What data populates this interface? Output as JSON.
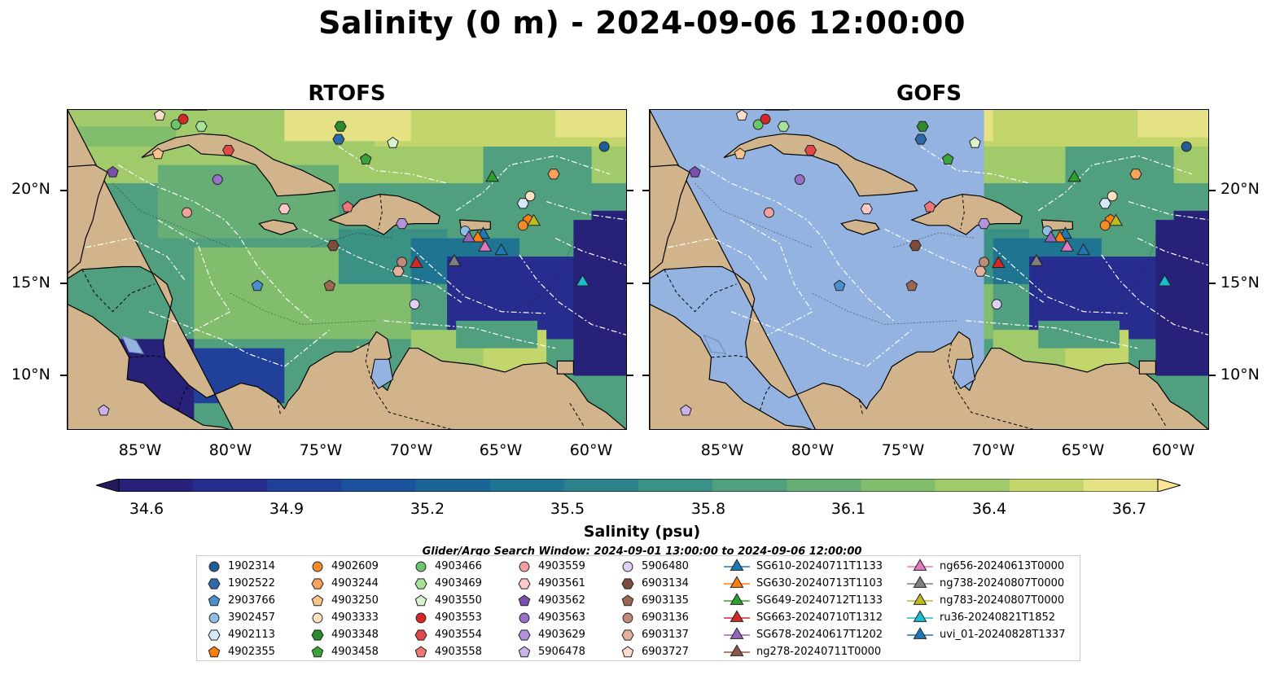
{
  "title": "Salinity (0 m) - 2024-09-06 12:00:00",
  "panels": [
    {
      "title": "RTOFS"
    },
    {
      "title": "GOFS"
    }
  ],
  "lat_labels": [
    "20°N",
    "15°N",
    "10°N"
  ],
  "lon_labels": [
    "85°W",
    "80°W",
    "75°W",
    "70°W",
    "65°W",
    "60°W"
  ],
  "map_extent": {
    "lon": [
      -89,
      -58
    ],
    "lat": [
      7,
      24.5
    ]
  },
  "colorbar": {
    "label": "Salinity (psu)",
    "ticks": [
      "34.6",
      "34.9",
      "35.2",
      "35.5",
      "35.8",
      "36.1",
      "36.4",
      "36.7"
    ],
    "colors": [
      "#241a5e",
      "#27217a",
      "#262d8f",
      "#21409a",
      "#1d539c",
      "#1b6496",
      "#1f7491",
      "#2c828c",
      "#3c9185",
      "#50a07f",
      "#67ae76",
      "#82bd6e",
      "#a1ca6a",
      "#c3d66c",
      "#e5e285",
      "#fce598"
    ]
  },
  "land_color": "#d2b48c",
  "nodata_color": "#95b3e0",
  "search_window": "Glider/Argo Search Window: 2024-09-01 13:00:00 to 2024-09-06 12:00:00",
  "legend": [
    {
      "label": "1902314",
      "shape": "circle",
      "color": "#1f5f95"
    },
    {
      "label": "1902522",
      "shape": "hexagon",
      "color": "#2c6aaa"
    },
    {
      "label": "2903766",
      "shape": "pentagon",
      "color": "#4b8fcc"
    },
    {
      "label": "3902457",
      "shape": "circle",
      "color": "#8fbde6"
    },
    {
      "label": "4902113",
      "shape": "hexagon",
      "color": "#d6e9f8"
    },
    {
      "label": "4902355",
      "shape": "pentagon",
      "color": "#ff7f0e"
    },
    {
      "label": "4902609",
      "shape": "circle",
      "color": "#f28c28"
    },
    {
      "label": "4903244",
      "shape": "hexagon",
      "color": "#f9a35a"
    },
    {
      "label": "4903250",
      "shape": "pentagon",
      "color": "#fbc48d"
    },
    {
      "label": "4903333",
      "shape": "circle",
      "color": "#fde2c4"
    },
    {
      "label": "4903348",
      "shape": "hexagon",
      "color": "#2d8a2d"
    },
    {
      "label": "4903458",
      "shape": "pentagon",
      "color": "#3aa43a"
    },
    {
      "label": "4903466",
      "shape": "circle",
      "color": "#6cc56c"
    },
    {
      "label": "4903469",
      "shape": "hexagon",
      "color": "#a8e29a"
    },
    {
      "label": "4903550",
      "shape": "pentagon",
      "color": "#d9f3cf"
    },
    {
      "label": "4903553",
      "shape": "circle",
      "color": "#d62728"
    },
    {
      "label": "4903554",
      "shape": "hexagon",
      "color": "#e0494a"
    },
    {
      "label": "4903558",
      "shape": "pentagon",
      "color": "#f07576"
    },
    {
      "label": "4903559",
      "shape": "circle",
      "color": "#f3a09f"
    },
    {
      "label": "4903561",
      "shape": "hexagon",
      "color": "#fbc9c8"
    },
    {
      "label": "4903562",
      "shape": "pentagon",
      "color": "#7b4fae"
    },
    {
      "label": "4903563",
      "shape": "circle",
      "color": "#9a6fc9"
    },
    {
      "label": "4903629",
      "shape": "hexagon",
      "color": "#b293dc"
    },
    {
      "label": "5906478",
      "shape": "pentagon",
      "color": "#cbb2ec"
    },
    {
      "label": "5906480",
      "shape": "circle",
      "color": "#e0cff7"
    },
    {
      "label": "6903134",
      "shape": "hexagon",
      "color": "#7d4c3a"
    },
    {
      "label": "6903135",
      "shape": "pentagon",
      "color": "#9c6651"
    },
    {
      "label": "6903136",
      "shape": "circle",
      "color": "#c08a77"
    },
    {
      "label": "6903137",
      "shape": "hexagon",
      "color": "#e2b09c"
    },
    {
      "label": "6903727",
      "shape": "pentagon",
      "color": "#fbdccd"
    },
    {
      "label": "SG610-20240711T1133",
      "shape": "triangle",
      "color": "#1f77b4"
    },
    {
      "label": "SG630-20240713T1103",
      "shape": "triangle",
      "color": "#ff7f0e"
    },
    {
      "label": "SG649-20240712T1133",
      "shape": "triangle",
      "color": "#2ca02c"
    },
    {
      "label": "SG663-20240710T1312",
      "shape": "triangle",
      "color": "#d62728"
    },
    {
      "label": "SG678-20240617T1202",
      "shape": "triangle",
      "color": "#9467bd"
    },
    {
      "label": "ng278-20240711T0000",
      "shape": "triangle",
      "color": "#8c564b"
    },
    {
      "label": "ng656-20240613T0000",
      "shape": "triangle",
      "color": "#e377c2"
    },
    {
      "label": "ng738-20240807T0000",
      "shape": "triangle",
      "color": "#7f7f7f"
    },
    {
      "label": "ng783-20240807T0000",
      "shape": "triangle",
      "color": "#bcbd22"
    },
    {
      "label": "ru36-20240821T1852",
      "shape": "triangle",
      "color": "#17becf"
    },
    {
      "label": "uvi_01-20240828T1337",
      "shape": "triangle",
      "color": "#1f77b4"
    }
  ],
  "observations": [
    {
      "id": "1902314",
      "lon": -59.3,
      "lat": 22.5
    },
    {
      "id": "1902522",
      "lon": -74.0,
      "lat": 22.9
    },
    {
      "id": "2903766",
      "lon": -78.5,
      "lat": 14.9
    },
    {
      "id": "3902457",
      "lon": -67.0,
      "lat": 17.9
    },
    {
      "id": "4902113",
      "lon": -63.8,
      "lat": 19.4
    },
    {
      "id": "4902355",
      "lon": -63.5,
      "lat": 18.5
    },
    {
      "id": "4902609",
      "lon": -63.8,
      "lat": 18.2
    },
    {
      "id": "4903244",
      "lon": -62.1,
      "lat": 21.0
    },
    {
      "id": "4903250",
      "lon": -84.0,
      "lat": 22.1
    },
    {
      "id": "4903333",
      "lon": -63.4,
      "lat": 19.8
    },
    {
      "id": "4903348",
      "lon": -73.9,
      "lat": 23.6
    },
    {
      "id": "4903458",
      "lon": -72.5,
      "lat": 21.8
    },
    {
      "id": "4903466",
      "lon": -83.0,
      "lat": 23.7
    },
    {
      "id": "4903469",
      "lon": -81.6,
      "lat": 23.6
    },
    {
      "id": "4903550",
      "lon": -71.0,
      "lat": 22.7
    },
    {
      "id": "4903553",
      "lon": -82.6,
      "lat": 24.0
    },
    {
      "id": "4903554",
      "lon": -80.1,
      "lat": 22.3
    },
    {
      "id": "4903558",
      "lon": -73.5,
      "lat": 19.2
    },
    {
      "id": "4903559",
      "lon": -82.4,
      "lat": 18.9
    },
    {
      "id": "4903561",
      "lon": -77.0,
      "lat": 19.1
    },
    {
      "id": "4903562",
      "lon": -86.5,
      "lat": 21.1
    },
    {
      "id": "4903563",
      "lon": -80.7,
      "lat": 20.7
    },
    {
      "id": "4903629",
      "lon": -70.5,
      "lat": 18.3
    },
    {
      "id": "5906478",
      "lon": -87.0,
      "lat": 8.1
    },
    {
      "id": "5906480",
      "lon": -69.8,
      "lat": 13.9
    },
    {
      "id": "6903134",
      "lon": -74.3,
      "lat": 17.1
    },
    {
      "id": "6903135",
      "lon": -74.5,
      "lat": 14.9
    },
    {
      "id": "6903136",
      "lon": -70.5,
      "lat": 16.2
    },
    {
      "id": "6903137",
      "lon": -70.7,
      "lat": 15.7
    },
    {
      "id": "6903727",
      "lon": -83.9,
      "lat": 24.2
    },
    {
      "id": "SG610-20240711T1133",
      "lon": -66.0,
      "lat": 17.7
    },
    {
      "id": "SG630-20240713T1103",
      "lon": -66.3,
      "lat": 17.5
    },
    {
      "id": "SG649-20240712T1133",
      "lon": -65.5,
      "lat": 20.8
    },
    {
      "id": "SG663-20240710T1312",
      "lon": -69.7,
      "lat": 16.1
    },
    {
      "id": "SG678-20240617T1202",
      "lon": -66.8,
      "lat": 17.5
    },
    {
      "id": "ng278-20240711T0000",
      "lon": -67.6,
      "lat": 16.2
    },
    {
      "id": "ng656-20240613T0000",
      "lon": -65.9,
      "lat": 17.0
    },
    {
      "id": "ng738-20240807T0000",
      "lon": -67.6,
      "lat": 16.2
    },
    {
      "id": "ng783-20240807T0000",
      "lon": -63.2,
      "lat": 18.4
    },
    {
      "id": "ru36-20240821T1852",
      "lon": -60.5,
      "lat": 15.1
    },
    {
      "id": "uvi_01-20240828T1337",
      "lon": -65.0,
      "lat": 16.8
    }
  ]
}
